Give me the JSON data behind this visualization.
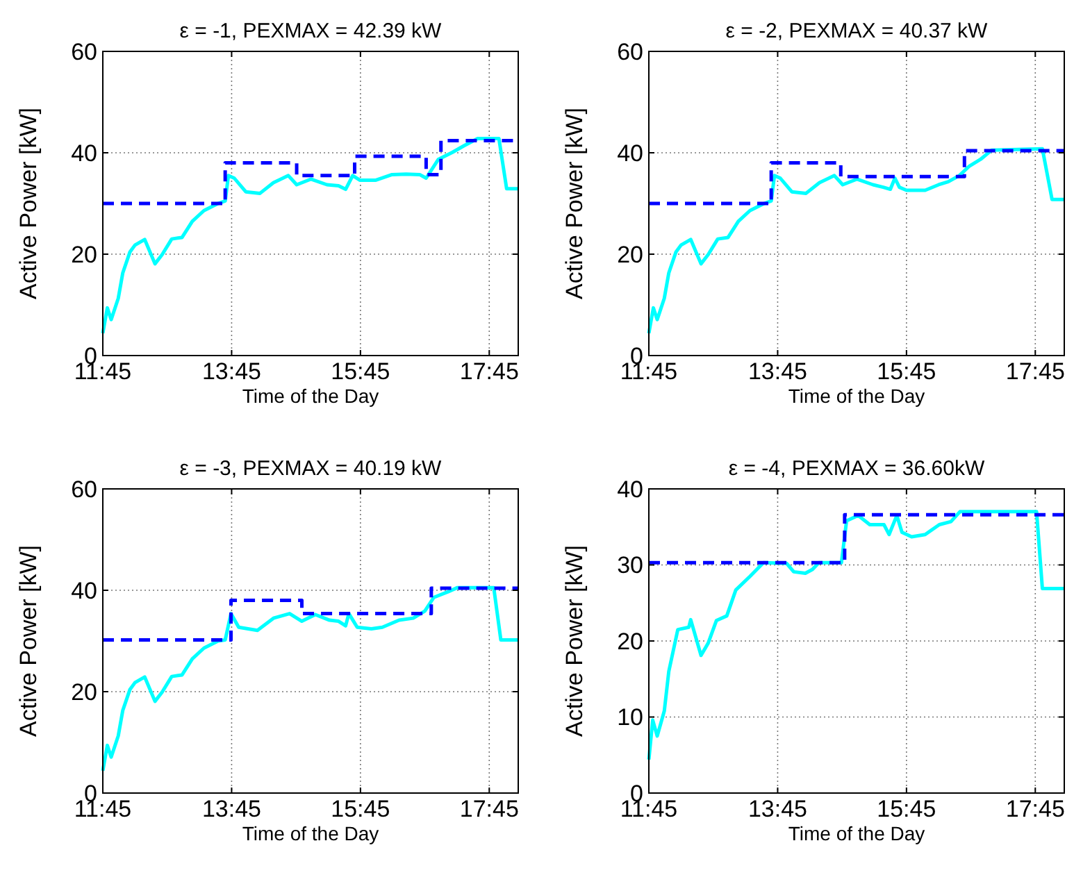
{
  "chart_data": [
    {
      "type": "line",
      "title": "ε = -1, PEXMAX = 42.39 kW",
      "xlabel": "Time of the Day",
      "ylabel": "Active Power [kW]",
      "xlim": [
        11.75,
        18.2
      ],
      "xticks": [
        {
          "value": 11.75,
          "label": "11:45"
        },
        {
          "value": 13.75,
          "label": "13:45"
        },
        {
          "value": 15.75,
          "label": "15:45"
        },
        {
          "value": 17.75,
          "label": "17:45"
        }
      ],
      "ylim": [
        0,
        60
      ],
      "yticks": [
        0,
        20,
        40,
        60
      ],
      "grid": true,
      "marker": "none",
      "series": [
        {
          "type": "line",
          "color": "#00ffff",
          "line_style": "solid",
          "x": [
            11.75,
            11.82,
            11.88,
            11.99,
            12.06,
            12.17,
            12.25,
            12.4,
            12.56,
            12.67,
            12.82,
            12.98,
            13.14,
            13.32,
            13.54,
            13.65,
            13.7,
            13.79,
            13.97,
            14.19,
            14.4,
            14.63,
            14.76,
            14.98,
            15.23,
            15.41,
            15.52,
            15.63,
            15.74,
            15.99,
            16.24,
            16.46,
            16.67,
            16.77,
            16.96,
            17.18,
            17.36,
            17.57,
            17.9,
            18.02,
            18.2
          ],
          "values": [
            4.4,
            9.4,
            7.1,
            11.3,
            16.3,
            20.4,
            21.8,
            22.9,
            18.1,
            19.9,
            23,
            23.3,
            26.5,
            28.6,
            30,
            30.5,
            35.5,
            35,
            32.3,
            32,
            34.1,
            35.5,
            33.7,
            34.8,
            33.7,
            33.5,
            32.8,
            35.5,
            34.6,
            34.6,
            35.7,
            35.8,
            35.7,
            35,
            38.7,
            40.1,
            41.4,
            42.8,
            42.8,
            32.9,
            32.9
          ]
        },
        {
          "type": "step",
          "color": "#0000ff",
          "line_style": "dashed",
          "x": [
            11.75,
            13.65,
            14.76,
            15.66,
            16.77,
            17,
            18.2
          ],
          "values": [
            30,
            38,
            35.5,
            39.3,
            35.7,
            42.4,
            42.4
          ]
        }
      ]
    },
    {
      "type": "line",
      "title": "ε = -2, PEXMAX = 40.37 kW",
      "xlabel": "Time of the Day",
      "ylabel": "Active Power [kW]",
      "xlim": [
        11.75,
        18.2
      ],
      "xticks": [
        {
          "value": 11.75,
          "label": "11:45"
        },
        {
          "value": 13.75,
          "label": "13:45"
        },
        {
          "value": 15.75,
          "label": "15:45"
        },
        {
          "value": 17.75,
          "label": "17:45"
        }
      ],
      "ylim": [
        0,
        60
      ],
      "yticks": [
        0,
        20,
        40,
        60
      ],
      "grid": true,
      "marker": "none",
      "series": [
        {
          "type": "line",
          "color": "#00ffff",
          "line_style": "solid",
          "x": [
            11.75,
            11.82,
            11.88,
            11.99,
            12.06,
            12.17,
            12.25,
            12.4,
            12.56,
            12.67,
            12.82,
            12.98,
            13.14,
            13.32,
            13.54,
            13.65,
            13.7,
            13.79,
            13.97,
            14.19,
            14.4,
            14.63,
            14.76,
            14.98,
            15.23,
            15.39,
            15.5,
            15.57,
            15.64,
            15.75,
            16.04,
            16.25,
            16.4,
            16.57,
            16.72,
            16.9,
            17.07,
            17.86,
            18.01,
            18.2
          ],
          "values": [
            4.4,
            9.4,
            7.1,
            11.3,
            16.3,
            20.4,
            21.8,
            22.9,
            18.1,
            19.9,
            23,
            23.3,
            26.5,
            28.6,
            30,
            30.5,
            35.5,
            35,
            32.3,
            32,
            34.1,
            35.5,
            33.7,
            34.8,
            33.7,
            33.2,
            32.8,
            35,
            33.2,
            32.6,
            32.6,
            33.7,
            34.3,
            35.5,
            37.3,
            38.7,
            40.5,
            40.8,
            30.8,
            30.8
          ]
        },
        {
          "type": "step",
          "color": "#0000ff",
          "line_style": "dashed",
          "x": [
            11.75,
            13.65,
            14.73,
            16.65,
            18.2
          ],
          "values": [
            30,
            38,
            35.3,
            40.4,
            40.4
          ]
        }
      ]
    },
    {
      "type": "line",
      "title": "ε = -3, PEXMAX = 40.19 kW",
      "xlabel": "Time of the Day",
      "ylabel": "Active Power [kW]",
      "xlim": [
        11.75,
        18.2
      ],
      "xticks": [
        {
          "value": 11.75,
          "label": "11:45"
        },
        {
          "value": 13.75,
          "label": "13:45"
        },
        {
          "value": 15.75,
          "label": "15:45"
        },
        {
          "value": 17.75,
          "label": "17:45"
        }
      ],
      "ylim": [
        0,
        60
      ],
      "yticks": [
        0,
        20,
        40,
        60
      ],
      "grid": true,
      "marker": "none",
      "series": [
        {
          "type": "line",
          "color": "#00ffff",
          "line_style": "solid",
          "x": [
            11.75,
            11.82,
            11.88,
            11.99,
            12.06,
            12.17,
            12.25,
            12.4,
            12.56,
            12.67,
            12.82,
            12.98,
            13.14,
            13.32,
            13.54,
            13.65,
            13.74,
            13.86,
            14.15,
            14.4,
            14.65,
            14.84,
            15.05,
            15.27,
            15.41,
            15.52,
            15.57,
            15.7,
            15.92,
            16.09,
            16.35,
            16.57,
            16.75,
            16.89,
            17.11,
            17.25,
            17.82,
            17.93,
            18.2
          ],
          "values": [
            4.4,
            9.4,
            7.1,
            11.3,
            16.3,
            20.4,
            21.8,
            22.9,
            18.1,
            19.9,
            23,
            23.3,
            26.5,
            28.6,
            30,
            30.2,
            35.4,
            32.7,
            32.1,
            34.5,
            35.4,
            33.9,
            35.2,
            34.1,
            33.9,
            33,
            35.4,
            32.7,
            32.4,
            32.7,
            34.1,
            34.5,
            35.9,
            38.6,
            39.7,
            40.5,
            40.5,
            30.2,
            30.2
          ]
        },
        {
          "type": "step",
          "color": "#0000ff",
          "line_style": "dashed",
          "x": [
            11.75,
            13.74,
            14.84,
            16.85,
            18.2
          ],
          "values": [
            30.2,
            38,
            35.4,
            40.4,
            40.4
          ]
        }
      ]
    },
    {
      "type": "line",
      "title": "ε = -4, PEXMAX = 36.60kW",
      "xlabel": "Time of the Day",
      "ylabel": "Active Power [kW]",
      "xlim": [
        11.75,
        18.2
      ],
      "xticks": [
        {
          "value": 11.75,
          "label": "11:45"
        },
        {
          "value": 13.75,
          "label": "13:45"
        },
        {
          "value": 15.75,
          "label": "15:45"
        },
        {
          "value": 17.75,
          "label": "17:45"
        }
      ],
      "ylim": [
        0,
        40
      ],
      "yticks": [
        0,
        10,
        20,
        30,
        40
      ],
      "grid": true,
      "marker": "none",
      "series": [
        {
          "type": "line",
          "color": "#00ffff",
          "line_style": "solid",
          "x": [
            11.75,
            11.81,
            11.88,
            11.99,
            12.06,
            12.2,
            12.37,
            12.4,
            12.56,
            12.67,
            12.8,
            12.96,
            13.1,
            13.32,
            13.53,
            13.89,
            14,
            14.18,
            14.29,
            14.39,
            14.74,
            14.82,
            15,
            15.18,
            15.4,
            15.48,
            15.6,
            15.68,
            15.83,
            16.04,
            16.26,
            16.44,
            16.58,
            17.77,
            17.86,
            18.2
          ],
          "values": [
            4.4,
            9.6,
            7.5,
            10.8,
            16,
            21.5,
            21.8,
            22.8,
            18.1,
            19.7,
            22.7,
            23.3,
            26.7,
            28.5,
            30.3,
            30.2,
            29.1,
            28.9,
            29.4,
            30.3,
            30.3,
            35.8,
            36.5,
            35.3,
            35.3,
            34,
            36.5,
            34.3,
            33.7,
            34,
            35.3,
            35.7,
            37,
            37,
            26.9,
            26.9
          ]
        },
        {
          "type": "step",
          "color": "#0000ff",
          "line_style": "dashed",
          "x": [
            11.75,
            14.79,
            18.2
          ],
          "values": [
            30.3,
            36.6,
            36.6
          ]
        }
      ]
    }
  ]
}
